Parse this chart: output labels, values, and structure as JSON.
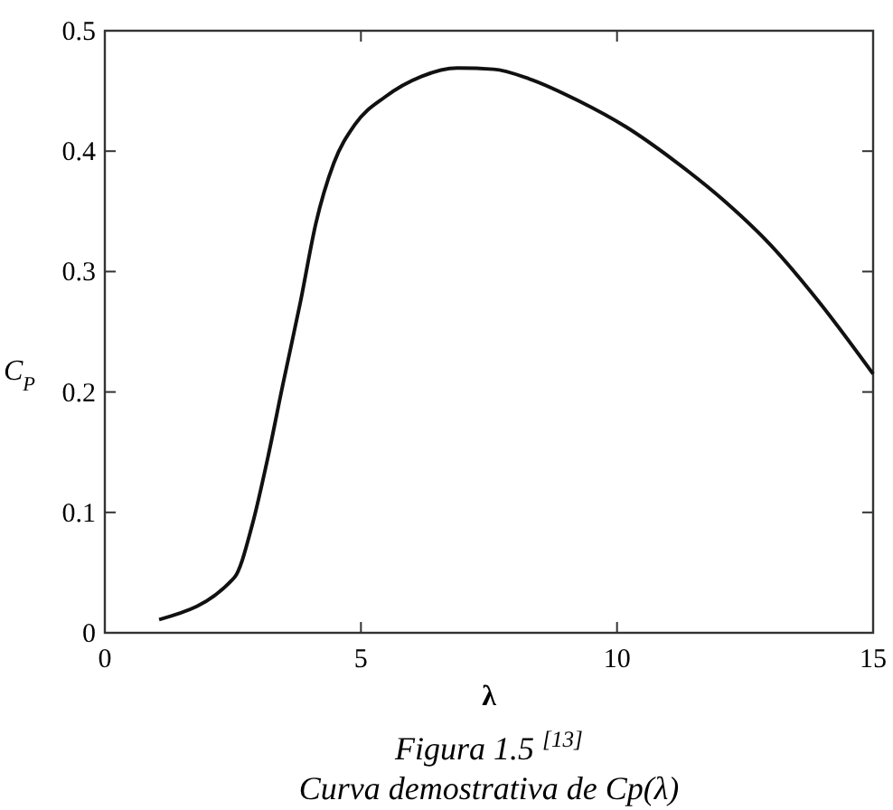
{
  "chart_data": {
    "type": "line",
    "xlabel": "λ",
    "ylabel": "C$_{P}$",
    "annotations": [
      "Figura 1.5 $^{[13]}$",
      "Curva demostrativa de Cp(λ)"
    ],
    "x": [
      1.06,
      2.53,
      2.88,
      3.18,
      3.47,
      3.82,
      4.12,
      4.47,
      4.88,
      5.47,
      6.18,
      6.88,
      7.59,
      8.29,
      9.24,
      10.18,
      11.12,
      12.06,
      13.0,
      13.94,
      15
    ],
    "series": [
      {
        "color": "#111111",
        "values": [
          0.011,
          0.046,
          0.09,
          0.145,
          0.205,
          0.275,
          0.34,
          0.39,
          0.422,
          0.445,
          0.462,
          0.469,
          0.468,
          0.46,
          0.442,
          0.42,
          0.392,
          0.36,
          0.322,
          0.275,
          0.215
        ]
      }
    ],
    "xlim": [
      0,
      15
    ],
    "xticks": [
      0,
      5,
      10,
      15
    ],
    "ylim": [
      0,
      0.5
    ],
    "yticks": [
      0,
      0.1,
      0.2,
      0.3,
      0.4,
      0.5
    ],
    "grid": false,
    "marker": "none",
    "line_style": "solid"
  }
}
